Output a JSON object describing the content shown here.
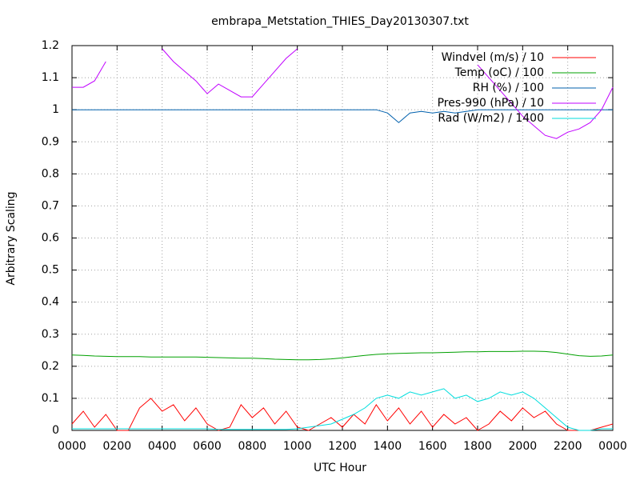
{
  "chart_data": {
    "type": "line",
    "title": "embrapa_Metstation_THIES_Day20130307.txt",
    "xlabel": "UTC Hour",
    "ylabel": "Arbitrary Scaling",
    "x": [
      0,
      0.5,
      1,
      1.5,
      2,
      2.5,
      3,
      3.5,
      4,
      4.5,
      5,
      5.5,
      6,
      6.5,
      7,
      7.5,
      8,
      8.5,
      9,
      9.5,
      10,
      10.5,
      11,
      11.5,
      12,
      12.5,
      13,
      13.5,
      14,
      14.5,
      15,
      15.5,
      16,
      16.5,
      17,
      17.5,
      18,
      18.5,
      19,
      19.5,
      20,
      20.5,
      21,
      21.5,
      22,
      22.5,
      23,
      23.5,
      24
    ],
    "xlim": [
      0,
      24
    ],
    "xticks": [
      {
        "value": 0,
        "label": "0000"
      },
      {
        "value": 2,
        "label": "0200"
      },
      {
        "value": 4,
        "label": "0400"
      },
      {
        "value": 6,
        "label": "0600"
      },
      {
        "value": 8,
        "label": "0800"
      },
      {
        "value": 10,
        "label": "1000"
      },
      {
        "value": 12,
        "label": "1200"
      },
      {
        "value": 14,
        "label": "1400"
      },
      {
        "value": 16,
        "label": "1600"
      },
      {
        "value": 18,
        "label": "1800"
      },
      {
        "value": 20,
        "label": "2000"
      },
      {
        "value": 22,
        "label": "2200"
      },
      {
        "value": 24,
        "label": "0000"
      }
    ],
    "ylim": [
      0,
      1.2
    ],
    "yticks": [
      0,
      0.1,
      0.2,
      0.3,
      0.4,
      0.5,
      0.6,
      0.7,
      0.8,
      0.9,
      1,
      1.1,
      1.2
    ],
    "grid": true,
    "legend": "top-right",
    "series": [
      {
        "name": "Windvel (m/s) / 10",
        "color": "#ff0000",
        "values": [
          0.02,
          0.06,
          0.01,
          0.05,
          0,
          0,
          0.07,
          0.1,
          0.06,
          0.08,
          0.03,
          0.07,
          0.02,
          0,
          0.01,
          0.08,
          0.04,
          0.07,
          0.02,
          0.06,
          0.01,
          0,
          0.02,
          0.04,
          0.01,
          0.05,
          0.02,
          0.08,
          0.03,
          0.07,
          0.02,
          0.06,
          0.01,
          0.05,
          0.02,
          0.04,
          0,
          0.02,
          0.06,
          0.03,
          0.07,
          0.04,
          0.06,
          0.02,
          0,
          0,
          0,
          0.01,
          0.02
        ]
      },
      {
        "name": "Temp (oC) / 100",
        "color": "#00a000",
        "values": [
          0.235,
          0.234,
          0.232,
          0.231,
          0.23,
          0.23,
          0.23,
          0.229,
          0.229,
          0.229,
          0.229,
          0.229,
          0.228,
          0.227,
          0.226,
          0.225,
          0.225,
          0.224,
          0.222,
          0.221,
          0.22,
          0.22,
          0.221,
          0.223,
          0.226,
          0.23,
          0.234,
          0.237,
          0.239,
          0.24,
          0.241,
          0.242,
          0.242,
          0.243,
          0.244,
          0.245,
          0.245,
          0.246,
          0.246,
          0.246,
          0.247,
          0.247,
          0.246,
          0.243,
          0.238,
          0.233,
          0.231,
          0.232,
          0.235
        ]
      },
      {
        "name": "RH (%) / 100",
        "color": "#0060ad",
        "values": [
          1,
          1,
          1,
          1,
          1,
          1,
          1,
          1,
          1,
          1,
          1,
          1,
          1,
          1,
          1,
          1,
          1,
          1,
          1,
          1,
          1,
          1,
          1,
          1,
          1,
          1,
          1,
          1,
          0.99,
          0.96,
          0.99,
          0.995,
          0.99,
          0.995,
          0.99,
          0.995,
          1,
          1,
          1,
          1,
          1,
          1,
          1,
          1,
          1,
          1,
          1,
          1,
          1
        ]
      },
      {
        "name": "Pres-990 (hPa) / 10",
        "color": "#c000ff",
        "values": [
          1.07,
          1.07,
          1.09,
          1.15,
          null,
          null,
          null,
          null,
          1.19,
          1.15,
          1.12,
          1.09,
          1.05,
          1.08,
          1.06,
          1.04,
          1.04,
          1.08,
          1.12,
          1.16,
          1.19,
          null,
          null,
          null,
          null,
          null,
          null,
          null,
          null,
          null,
          null,
          null,
          null,
          null,
          null,
          null,
          1.14,
          1.1,
          1.06,
          1.02,
          0.98,
          0.95,
          0.92,
          0.91,
          0.93,
          0.94,
          0.96,
          1.0,
          1.07
        ]
      },
      {
        "name": "Rad (W/m2) / 1400",
        "color": "#00dddd",
        "values": [
          0.005,
          0.005,
          0.005,
          0.005,
          0.005,
          0.005,
          0.005,
          0.005,
          0.005,
          0.005,
          0.005,
          0.005,
          0.005,
          0.003,
          0.003,
          0.003,
          0.003,
          0.003,
          0.003,
          0.003,
          0.005,
          0.01,
          0.015,
          0.02,
          0.035,
          0.05,
          0.07,
          0.1,
          0.11,
          0.1,
          0.12,
          0.11,
          0.12,
          0.13,
          0.1,
          0.11,
          0.09,
          0.1,
          0.12,
          0.11,
          0.12,
          0.1,
          0.07,
          0.04,
          0.01,
          0,
          0,
          0.005,
          0.005
        ]
      }
    ]
  }
}
